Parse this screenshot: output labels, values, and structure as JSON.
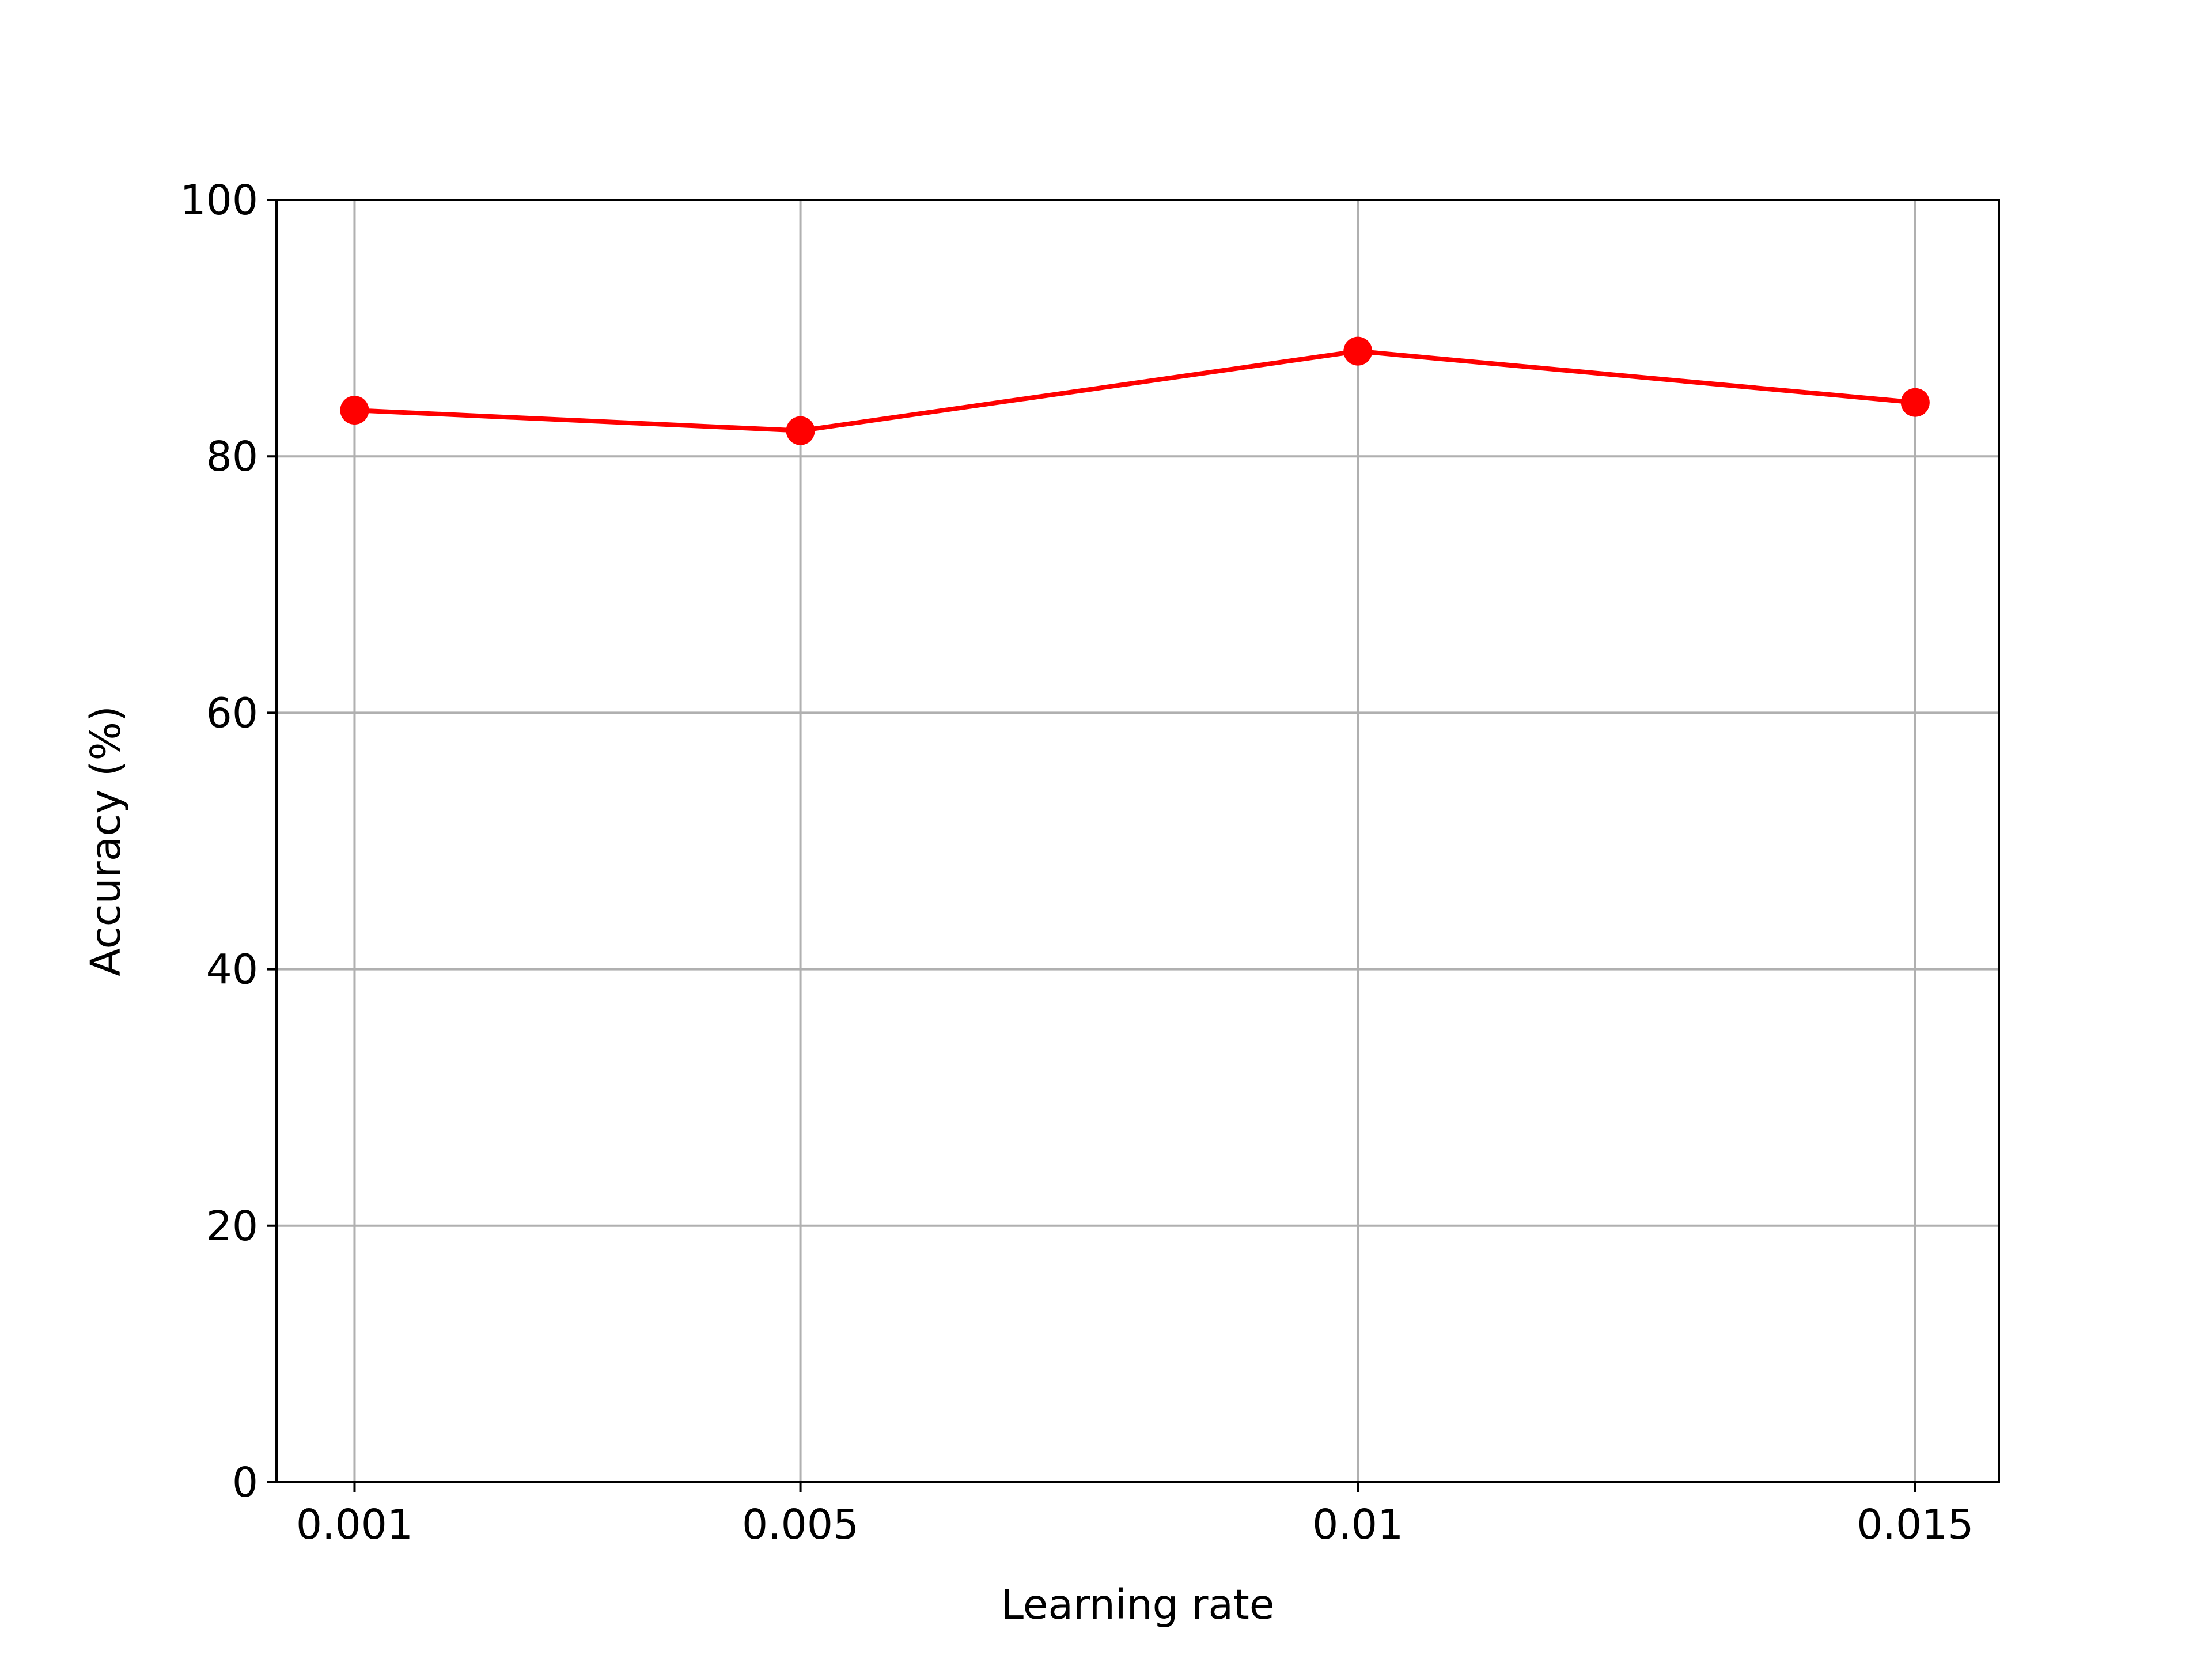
{
  "chart_data": {
    "type": "line",
    "title": "",
    "xlabel": "Learning rate",
    "ylabel": "Accuracy (%)",
    "x": [
      0.001,
      0.005,
      0.01,
      0.015
    ],
    "x_tick_labels": [
      "0.001",
      "0.005",
      "0.01",
      "0.015"
    ],
    "series": [
      {
        "values": [
          83.6,
          82.0,
          88.2,
          84.2
        ],
        "color": "#ff0000",
        "marker": "circle"
      }
    ],
    "xlim": [
      0.0003,
      0.01575
    ],
    "ylim": [
      0,
      100
    ],
    "y_ticks": [
      0,
      20,
      40,
      60,
      80,
      100
    ],
    "y_tick_labels": [
      "0",
      "20",
      "40",
      "60",
      "80",
      "100"
    ],
    "grid": true,
    "colors": {
      "grid": "#b0b0b0",
      "axes": "#000000",
      "background": "#ffffff"
    }
  }
}
